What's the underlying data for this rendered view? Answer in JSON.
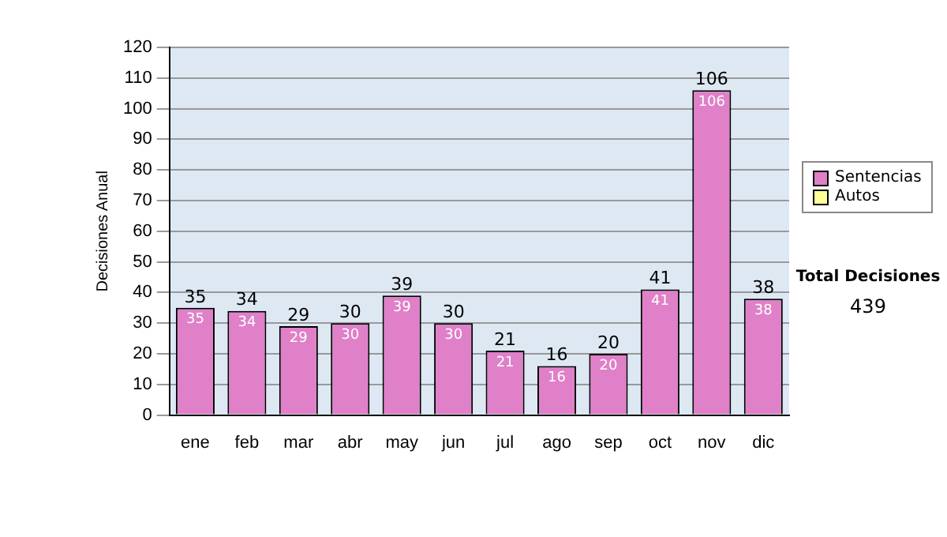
{
  "chart_data": {
    "type": "bar",
    "stacked": true,
    "ylabel": "Decisiones Anual",
    "categories": [
      "ene",
      "feb",
      "mar",
      "abr",
      "may",
      "jun",
      "jul",
      "ago",
      "sep",
      "oct",
      "nov",
      "dic"
    ],
    "series": [
      {
        "name": "Sentencias",
        "color": "#df80c8",
        "values": [
          35,
          34,
          29,
          30,
          39,
          30,
          21,
          16,
          20,
          41,
          106,
          38
        ],
        "value_labels": [
          "35",
          "34",
          "29",
          "30",
          "39",
          "30",
          "21",
          "16",
          "20",
          "41",
          "106",
          "38"
        ]
      },
      {
        "name": "Autos",
        "color": "#ffff99",
        "values": [
          0,
          0,
          0,
          0,
          0,
          0,
          0,
          0,
          0,
          0,
          0,
          0
        ],
        "value_labels": [
          null,
          null,
          null,
          null,
          null,
          null,
          null,
          null,
          null,
          null,
          null,
          null
        ]
      }
    ],
    "ylim": [
      0,
      120
    ],
    "yticks": [
      0,
      10,
      20,
      30,
      40,
      50,
      60,
      70,
      80,
      90,
      100,
      110,
      120
    ],
    "grid": "y",
    "legend": "right",
    "totals": [
      "35",
      "34",
      "29",
      "30",
      "39",
      "30",
      "21",
      "16",
      "20",
      "41",
      "106",
      "38"
    ],
    "annotations": [
      "Total Decisiones",
      "439"
    ]
  }
}
